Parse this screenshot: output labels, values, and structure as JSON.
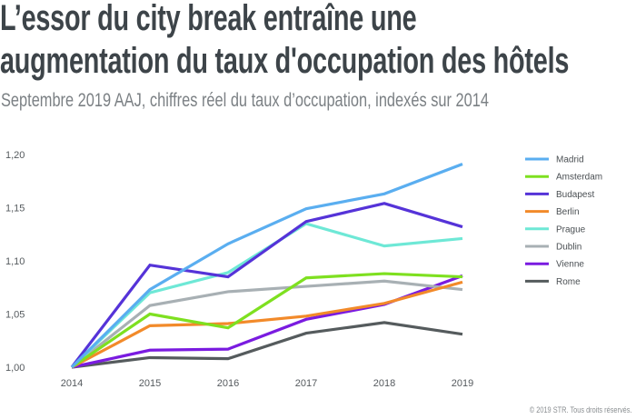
{
  "title_lines": [
    "L’essor du city break entraîne une",
    "augmentation du taux d'occupation des hôtels"
  ],
  "subtitle": "Septembre 2019 AAJ, chiffres réel du taux d’occupation, indexés sur 2014",
  "copyright": "© 2019 STR. Tous droits réservés.",
  "chart_data": {
    "type": "line",
    "title": "L’essor du city break entraîne une augmentation du taux d'occupation des hôtels",
    "subtitle": "Septembre 2019 AAJ, chiffres réel du taux d’occupation, indexés sur 2014",
    "xlabel": "",
    "ylabel": "",
    "x": [
      "2014",
      "2015",
      "2016",
      "2017",
      "2018",
      "2019"
    ],
    "ylim": [
      1.0,
      1.2
    ],
    "yticks": [
      1.0,
      1.05,
      1.1,
      1.15,
      1.2
    ],
    "ytick_labels": [
      "1,00",
      "1,05",
      "1,10",
      "1,15",
      "1,20"
    ],
    "grid": false,
    "legend_position": "right",
    "series": [
      {
        "name": "Madrid",
        "color": "#5aaef0",
        "values": [
          1.0,
          1.073,
          1.116,
          1.149,
          1.163,
          1.191
        ]
      },
      {
        "name": "Amsterdam",
        "color": "#7ee020",
        "values": [
          1.0,
          1.05,
          1.037,
          1.084,
          1.088,
          1.085
        ]
      },
      {
        "name": "Budapest",
        "color": "#5533d8",
        "values": [
          1.0,
          1.096,
          1.085,
          1.137,
          1.154,
          1.132
        ]
      },
      {
        "name": "Berlin",
        "color": "#f28a2a",
        "values": [
          1.0,
          1.039,
          1.041,
          1.048,
          1.06,
          1.08
        ]
      },
      {
        "name": "Prague",
        "color": "#6ee8d6",
        "values": [
          1.0,
          1.07,
          1.089,
          1.135,
          1.114,
          1.121
        ]
      },
      {
        "name": "Dublin",
        "color": "#a8b0b4",
        "values": [
          1.0,
          1.058,
          1.071,
          1.076,
          1.081,
          1.073
        ]
      },
      {
        "name": "Vienne",
        "color": "#7a1be0",
        "values": [
          1.0,
          1.016,
          1.017,
          1.045,
          1.059,
          1.086
        ]
      },
      {
        "name": "Rome",
        "color": "#555b5d",
        "values": [
          1.0,
          1.009,
          1.008,
          1.032,
          1.042,
          1.031
        ]
      }
    ],
    "source": "© 2019 STR. Tous droits réservés."
  }
}
